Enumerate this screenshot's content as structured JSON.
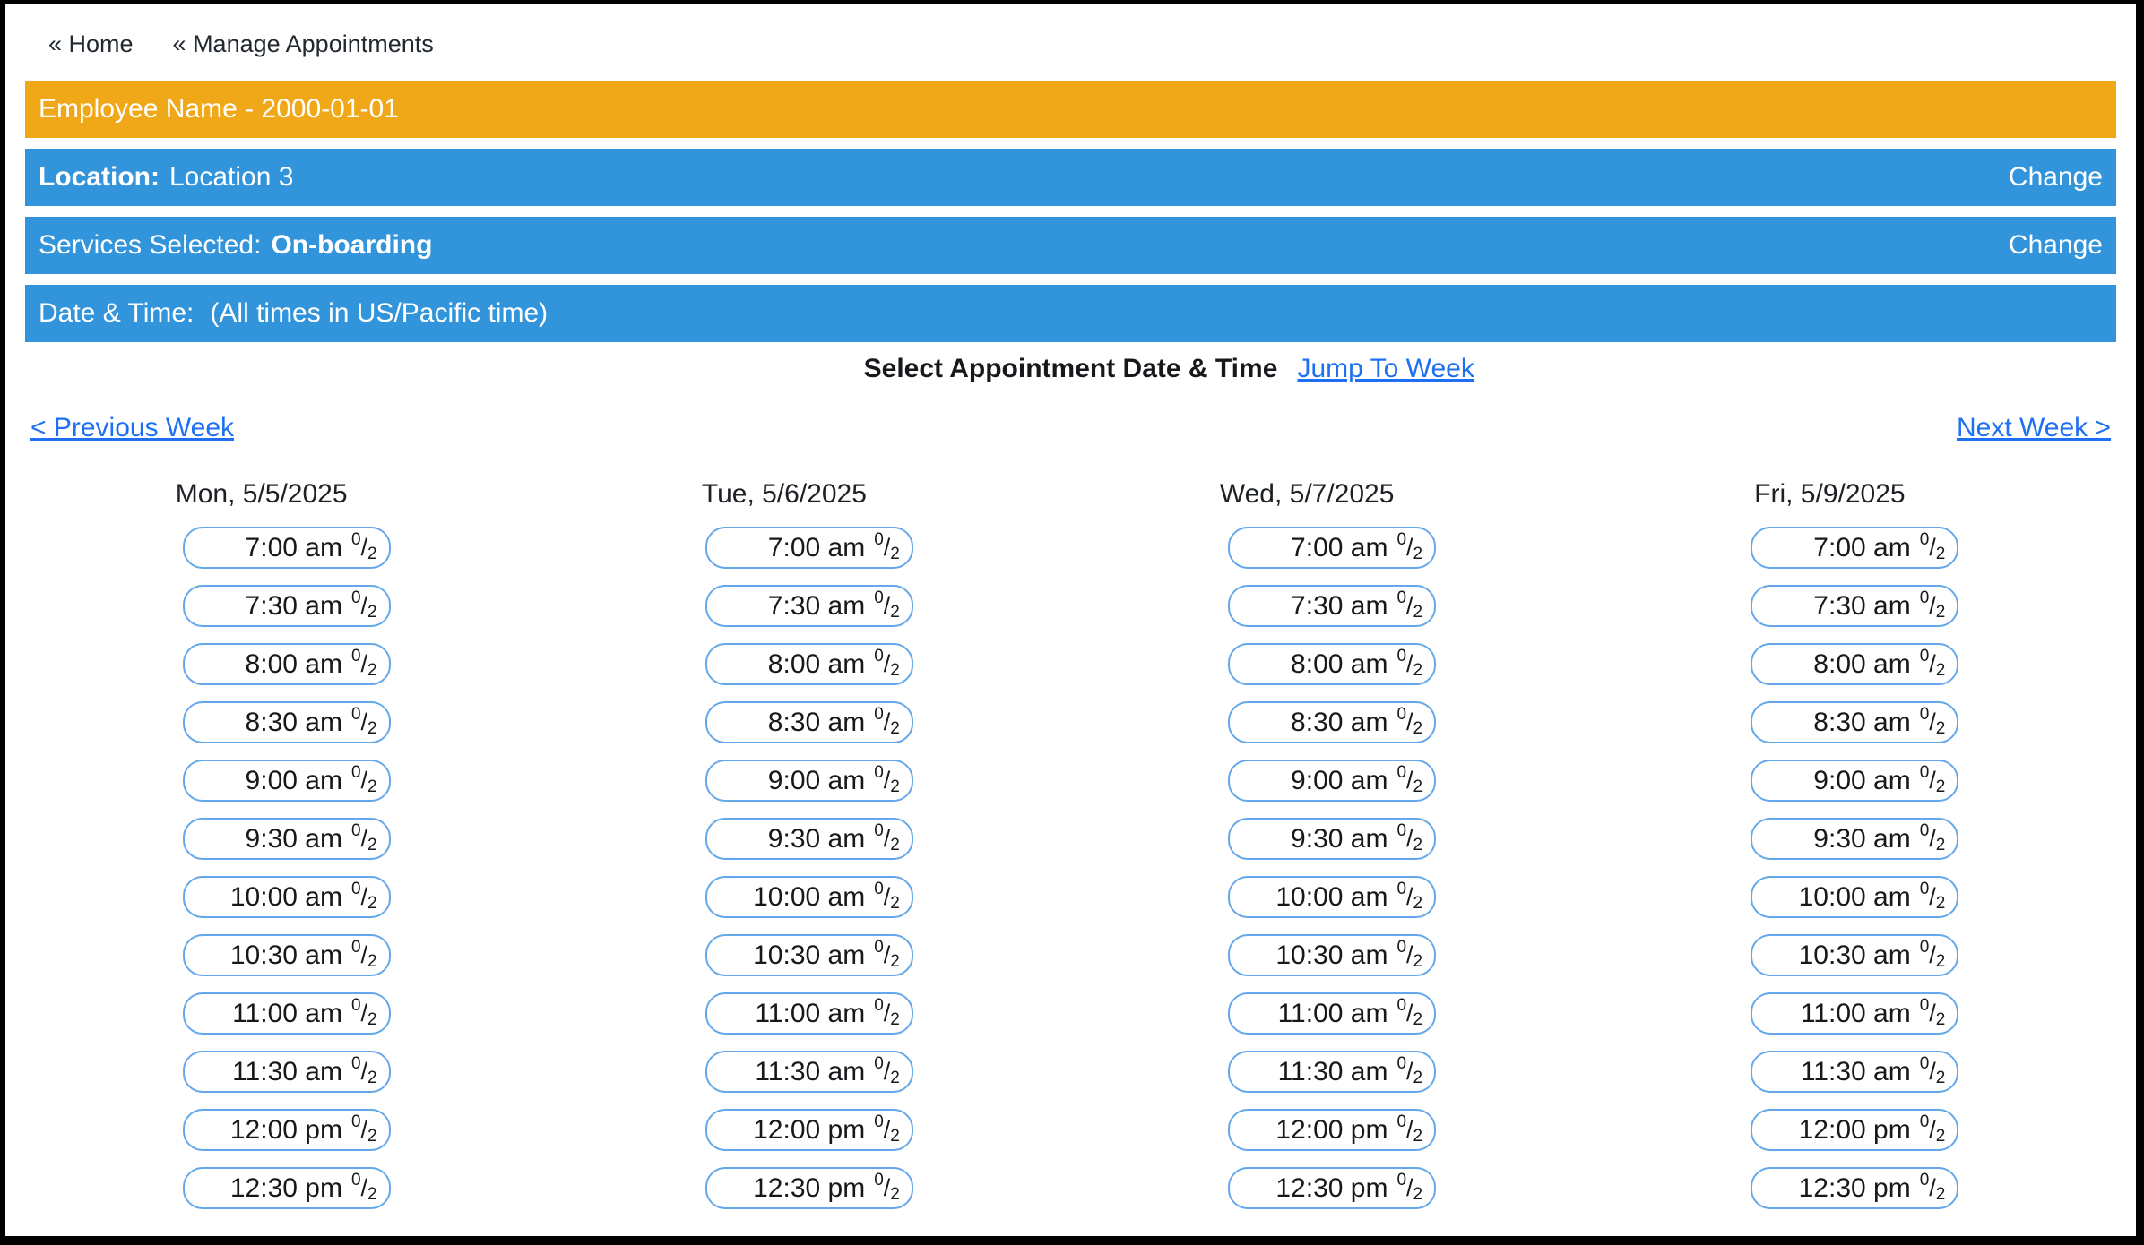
{
  "nav": {
    "home_label": "« Home",
    "manage_label": "« Manage Appointments"
  },
  "banners": {
    "employee_title": "Employee Name - 2000-01-01",
    "location": {
      "label": "Location:",
      "value": "Location 3",
      "change_label": "Change"
    },
    "services": {
      "label": "Services Selected:",
      "value": "On-boarding",
      "change_label": "Change"
    },
    "datetime": {
      "label": "Date & Time:",
      "note": "(All times in US/Pacific time)"
    }
  },
  "scheduler": {
    "heading": "Select Appointment Date & Time",
    "jump_to_week_label": "Jump To Week",
    "previous_week_label": "< Previous Week",
    "next_week_label": "Next Week >",
    "days": [
      {
        "label": "Mon, 5/5/2025"
      },
      {
        "label": "Tue, 5/6/2025"
      },
      {
        "label": "Wed, 5/7/2025"
      },
      {
        "label": "Fri, 5/9/2025"
      }
    ],
    "times": [
      "7:00 am",
      "7:30 am",
      "8:00 am",
      "8:30 am",
      "9:00 am",
      "9:30 am",
      "10:00 am",
      "10:30 am",
      "11:00 am",
      "11:30 am",
      "12:00 pm",
      "12:30 pm"
    ],
    "capacity": {
      "used": "0",
      "separator": "/",
      "total": "2"
    }
  },
  "colors": {
    "employee_banner": "#F0A818",
    "info_banner": "#3294DB",
    "link": "#1E6FF2",
    "slot_border": "#64A7EA",
    "text": "#1D2125"
  }
}
